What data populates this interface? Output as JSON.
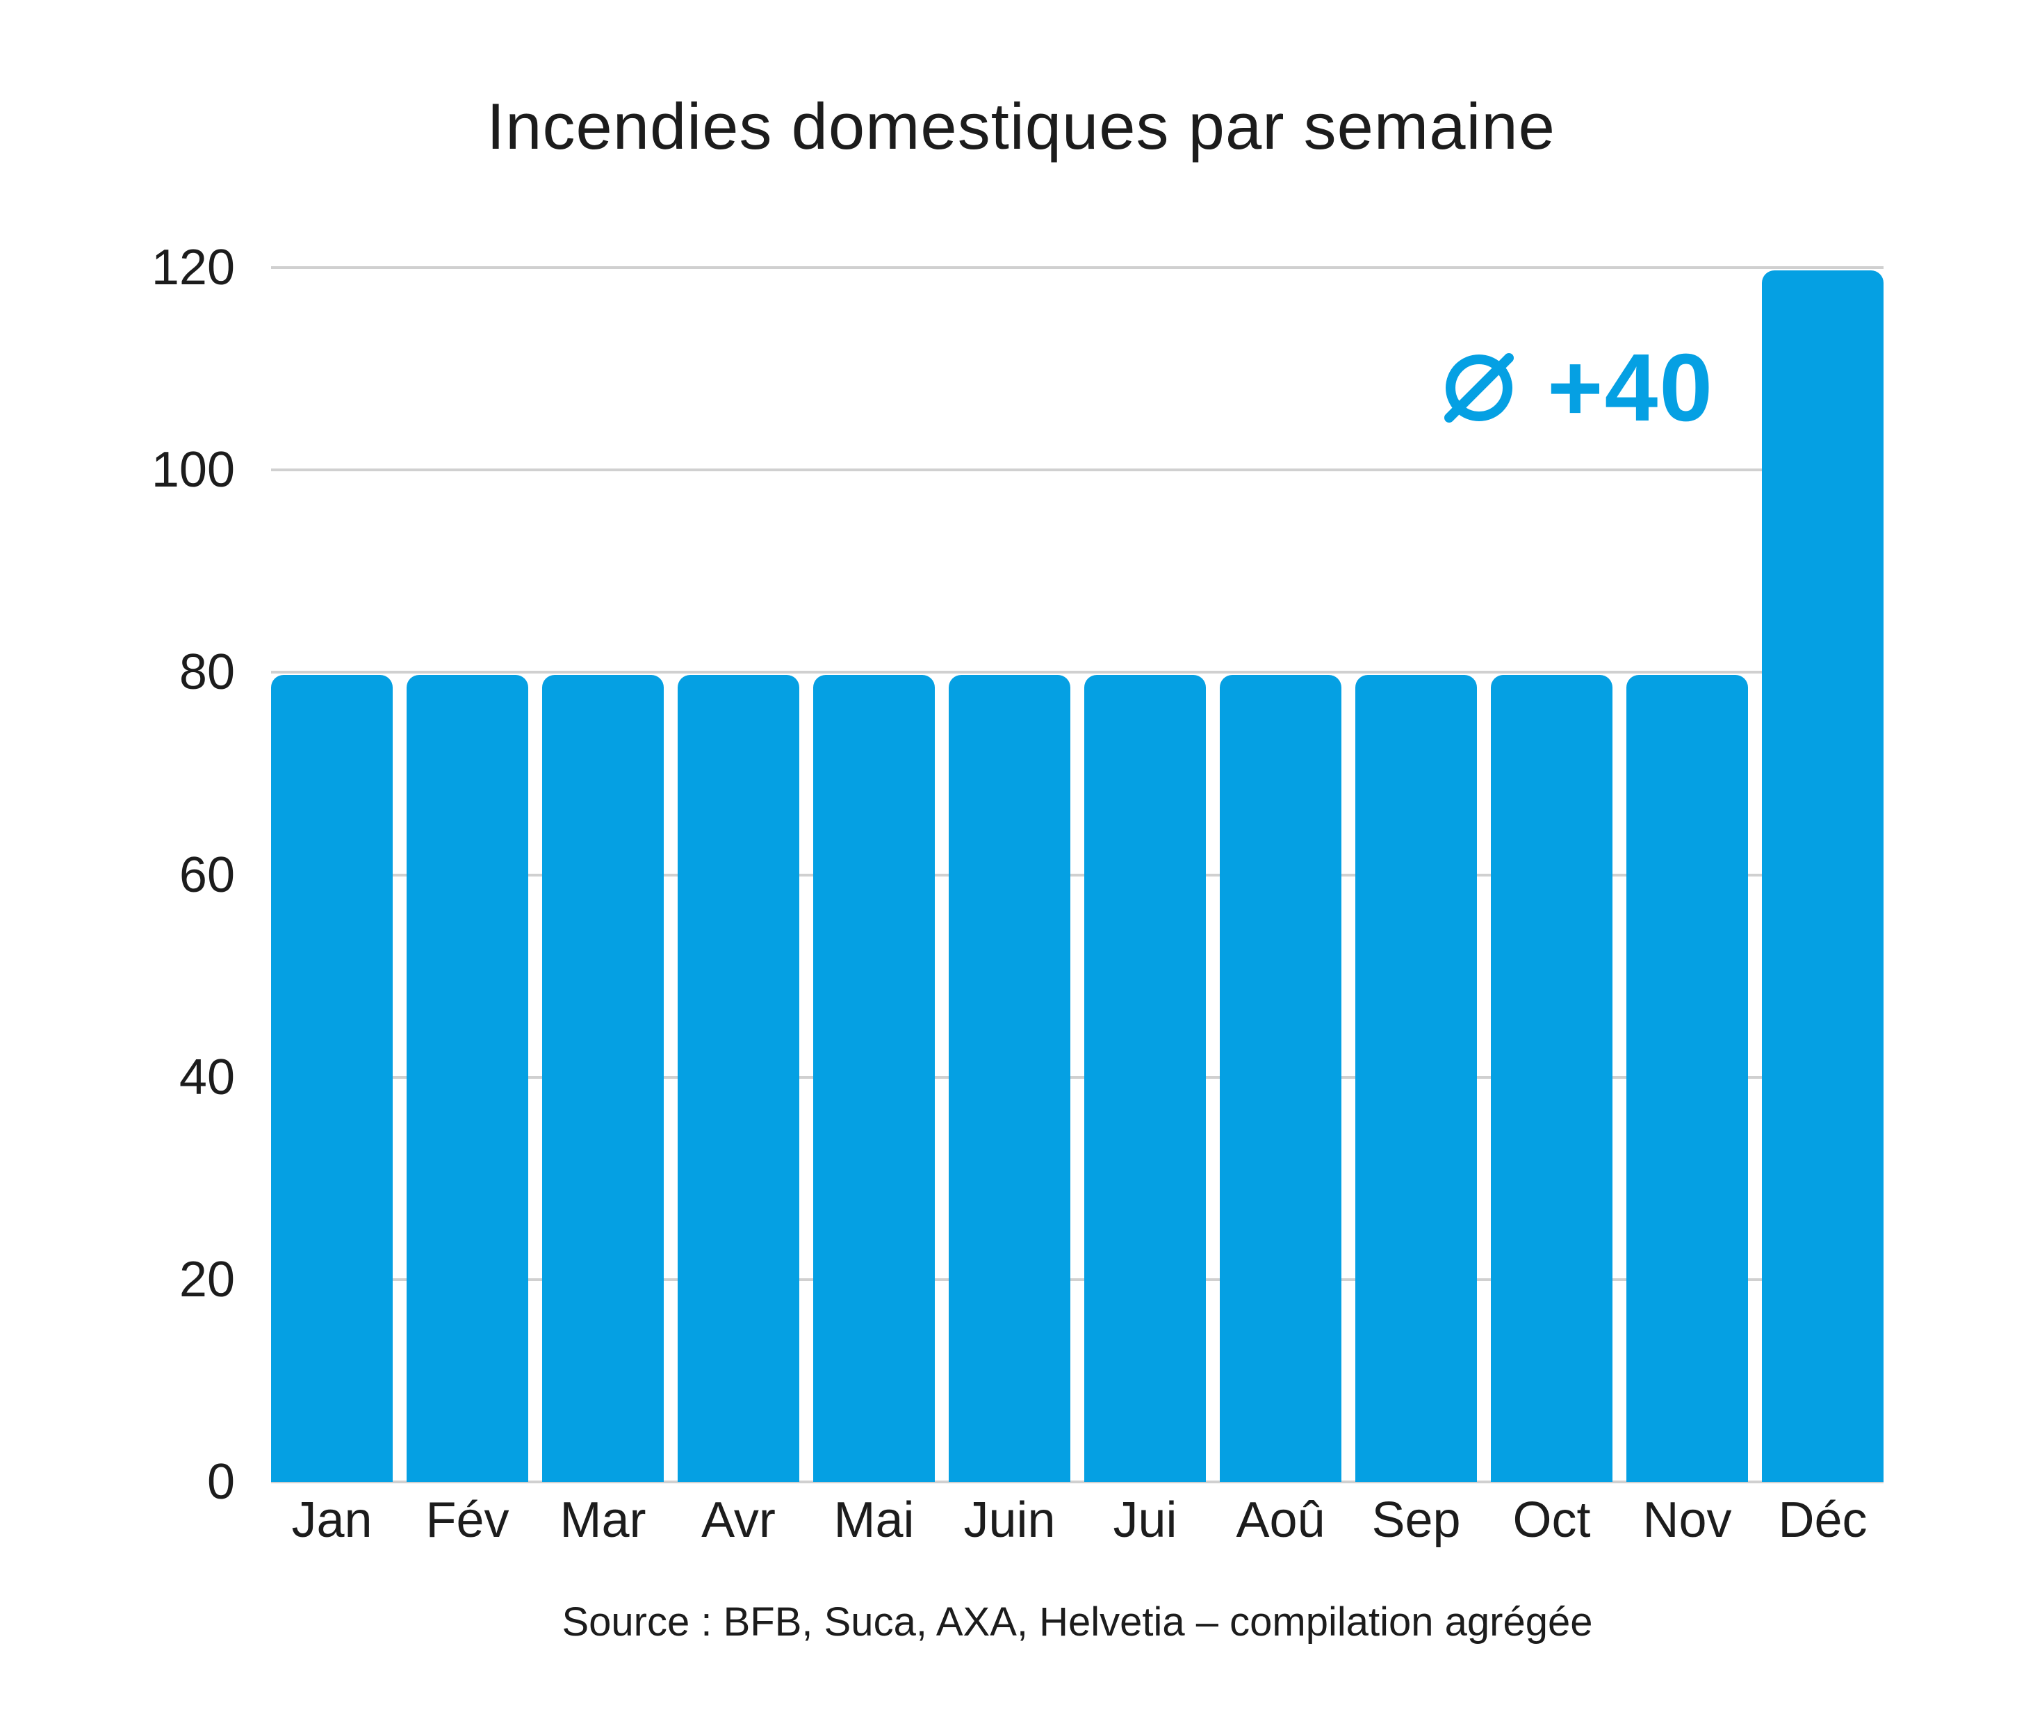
{
  "chart_data": {
    "type": "bar",
    "title": "Incendies domestiques par semaine",
    "categories": [
      "Jan",
      "Fév",
      "Mar",
      "Avr",
      "Mai",
      "Juin",
      "Jui",
      "Aoû",
      "Sep",
      "Oct",
      "Nov",
      "Déc"
    ],
    "values": [
      80,
      80,
      80,
      80,
      80,
      80,
      80,
      80,
      80,
      80,
      80,
      120
    ],
    "ylim": [
      0,
      120
    ],
    "yticks": [
      0,
      20,
      40,
      60,
      80,
      100,
      120
    ],
    "grid": true,
    "legend_position": "none",
    "xlabel": "",
    "ylabel": "",
    "bar_color": "#05a0e3",
    "gridline_color": "#d0d0d0",
    "annotation": {
      "icon": "average-diameter-icon",
      "symbol": "Ø",
      "value_label": "+40",
      "full_text": "Ø +40",
      "color": "#05a0e3"
    },
    "source_note": "Source : BFB, Suca, AXA, Helvetia – compilation agrégée"
  }
}
